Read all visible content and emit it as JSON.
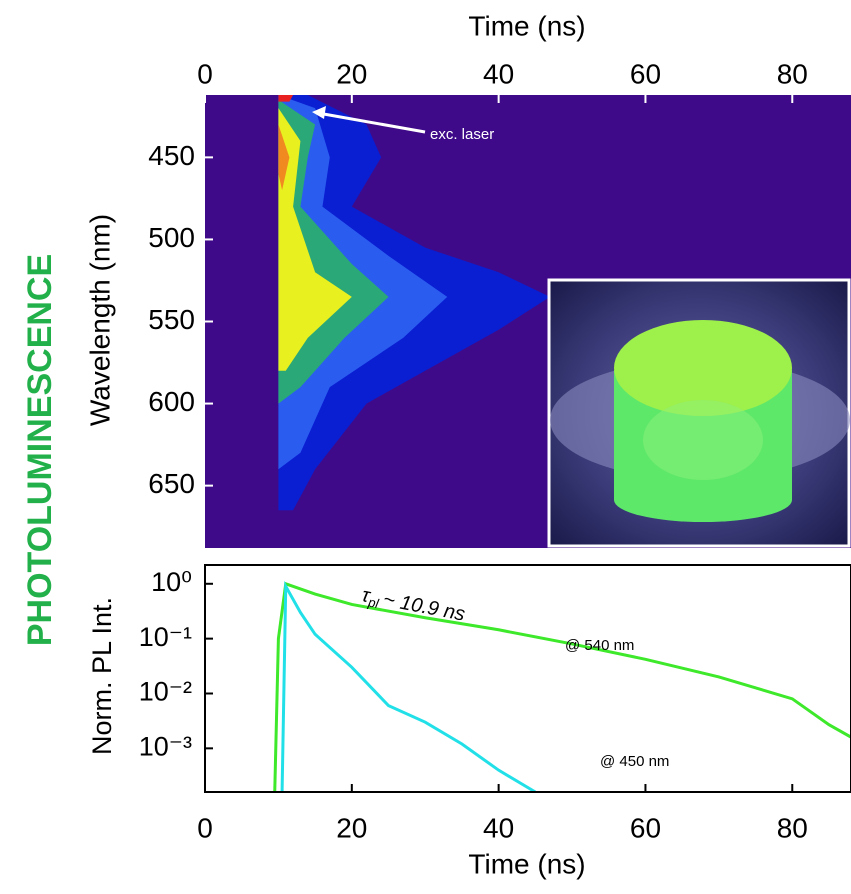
{
  "side_label": "PHOTOLUMINESCENCE",
  "chart_data": [
    {
      "type": "contour",
      "xlabel": "Time (ns)",
      "ylabel": "Wavelength (nm)",
      "xlim": [
        0,
        88
      ],
      "xticks": [
        0,
        20,
        40,
        60,
        80
      ],
      "ylim": [
        412,
        688
      ],
      "yticks": [
        450,
        500,
        550,
        600,
        650
      ],
      "y_reversed": true,
      "background": "#3f0a8a",
      "annotation": "exc. laser",
      "contours": [
        {
          "color": "#0a1ed2",
          "x": [
            10,
            14,
            22,
            24,
            20,
            30,
            40,
            47,
            40,
            30,
            22,
            15,
            12,
            10
          ],
          "y": [
            412,
            412,
            430,
            450,
            480,
            505,
            520,
            535,
            555,
            580,
            600,
            640,
            665,
            665
          ]
        },
        {
          "color": "#2a5cf0",
          "x": [
            10,
            15,
            17,
            16,
            25,
            33,
            27,
            17,
            13,
            10
          ],
          "y": [
            412,
            420,
            450,
            480,
            510,
            535,
            560,
            590,
            630,
            640
          ]
        },
        {
          "color": "#2aa878",
          "x": [
            10,
            15,
            14,
            13,
            20,
            25,
            19,
            13,
            10
          ],
          "y": [
            415,
            430,
            450,
            480,
            515,
            535,
            560,
            590,
            600
          ]
        },
        {
          "color": "#e8f020",
          "x": [
            10,
            13,
            12,
            15,
            20,
            14,
            11,
            10
          ],
          "y": [
            420,
            440,
            480,
            520,
            535,
            560,
            580,
            580
          ]
        },
        {
          "color": "#f08a20",
          "x": [
            10,
            11.5,
            10.5,
            10
          ],
          "y": [
            430,
            450,
            470,
            460
          ]
        },
        {
          "color": "#e82020",
          "x": [
            10,
            12,
            11.5,
            10
          ],
          "y": [
            412,
            412,
            416,
            416
          ]
        }
      ]
    },
    {
      "type": "line",
      "xlabel": "Time (ns)",
      "ylabel": "Norm. PL Int.",
      "xlim": [
        0,
        88
      ],
      "xticks": [
        0,
        20,
        40,
        60,
        80
      ],
      "ylim": [
        0.00016,
        2.2
      ],
      "ylog": true,
      "yticks": [
        {
          "value": 1,
          "label": "10⁰"
        },
        {
          "value": 0.1,
          "label": "10⁻¹"
        },
        {
          "value": 0.01,
          "label": "10⁻²"
        },
        {
          "value": 0.001,
          "label": "10⁻³"
        }
      ],
      "annotation": {
        "symbol": "τ",
        "subscript": "pl",
        "text": "~ 10.9 ns"
      },
      "series": [
        {
          "name": "@ 540 nm",
          "color": "#3ee82a",
          "x": [
            9.5,
            10,
            11,
            15,
            20,
            30,
            40,
            50,
            60,
            70,
            80,
            85,
            88
          ],
          "values": [
            0.00016,
            0.1,
            1.0,
            0.65,
            0.42,
            0.24,
            0.145,
            0.08,
            0.042,
            0.02,
            0.008,
            0.0027,
            0.0016
          ]
        },
        {
          "name": "@ 450 nm",
          "color": "#22e0e8",
          "x": [
            10.5,
            11,
            13,
            15,
            20,
            25,
            30,
            35,
            40,
            45
          ],
          "values": [
            0.00016,
            0.9,
            0.3,
            0.12,
            0.03,
            0.006,
            0.003,
            0.0012,
            0.0004,
            0.00016
          ]
        }
      ]
    }
  ]
}
